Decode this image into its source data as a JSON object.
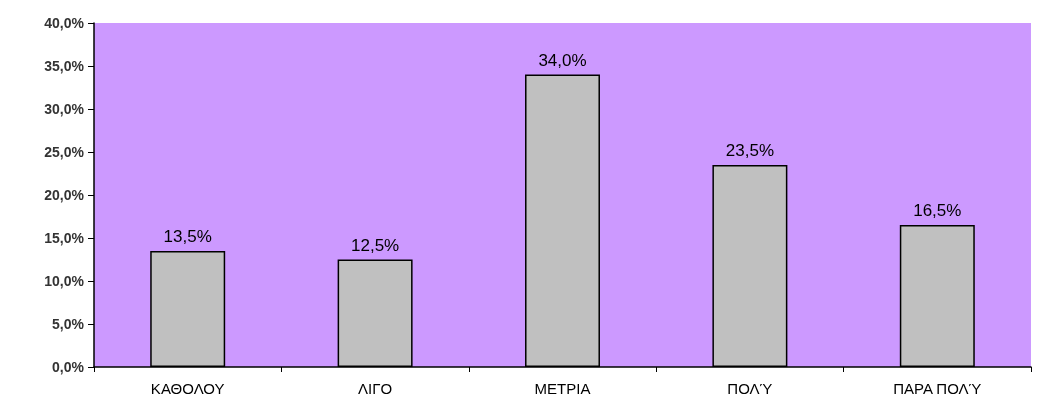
{
  "chart_data": {
    "type": "bar",
    "categories": [
      "ΚΑΘΟΛΟΥ",
      "ΛΙΓΟ",
      "ΜΕΤΡΙΑ",
      "ΠΟΛΎ",
      "ΠΑΡΑ ΠΟΛΎ"
    ],
    "values": [
      13.5,
      12.5,
      34.0,
      23.5,
      16.5
    ],
    "value_labels": [
      "13,5%",
      "12,5%",
      "34,0%",
      "23,5%",
      "16,5%"
    ],
    "color": "#c0c0c0",
    "ylim": [
      0,
      40
    ],
    "yticks": [
      {
        "value": 0,
        "label": "0,0%"
      },
      {
        "value": 5,
        "label": "5,0%"
      },
      {
        "value": 10,
        "label": "10,0%"
      },
      {
        "value": 15,
        "label": "15,0%"
      },
      {
        "value": 20,
        "label": "20,0%"
      },
      {
        "value": 25,
        "label": "25,0%"
      },
      {
        "value": 30,
        "label": "30,0%"
      },
      {
        "value": 35,
        "label": "35,0%"
      },
      {
        "value": 40,
        "label": "40,0%"
      }
    ],
    "grid": false
  }
}
